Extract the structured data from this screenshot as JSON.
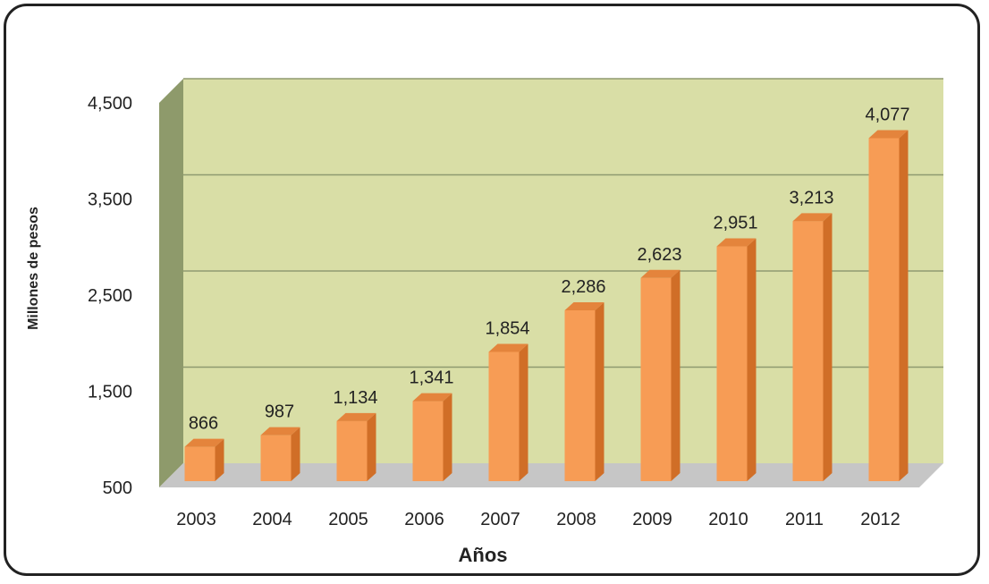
{
  "chart_data": {
    "type": "bar",
    "title": "",
    "xlabel": "Años",
    "ylabel": "Millones de pesos",
    "categories": [
      "2003",
      "2004",
      "2005",
      "2006",
      "2007",
      "2008",
      "2009",
      "2010",
      "2011",
      "2012"
    ],
    "values": [
      866,
      987,
      1134,
      1341,
      1854,
      2286,
      2623,
      2951,
      3213,
      4077
    ],
    "value_labels": [
      "866",
      "987",
      "1,134",
      "1,341",
      "1,854",
      "2,286",
      "2,623",
      "2,951",
      "3,213",
      "4,077"
    ],
    "ylim": [
      500,
      4500
    ],
    "yticks": [
      500,
      1500,
      2500,
      3500,
      4500
    ],
    "ytick_labels": [
      "500",
      "1,500",
      "2,500",
      "3,500",
      "4,500"
    ],
    "grid": true,
    "style_3d": true,
    "colors": {
      "bar_front": "#F79C55",
      "bar_side": "#D06E27",
      "bar_top": "#E4843C",
      "wall": "#D9DEA6",
      "side_wall": "#8E9A6B",
      "floor": "#C6C6C6",
      "gridline": "#8F9A70"
    }
  }
}
